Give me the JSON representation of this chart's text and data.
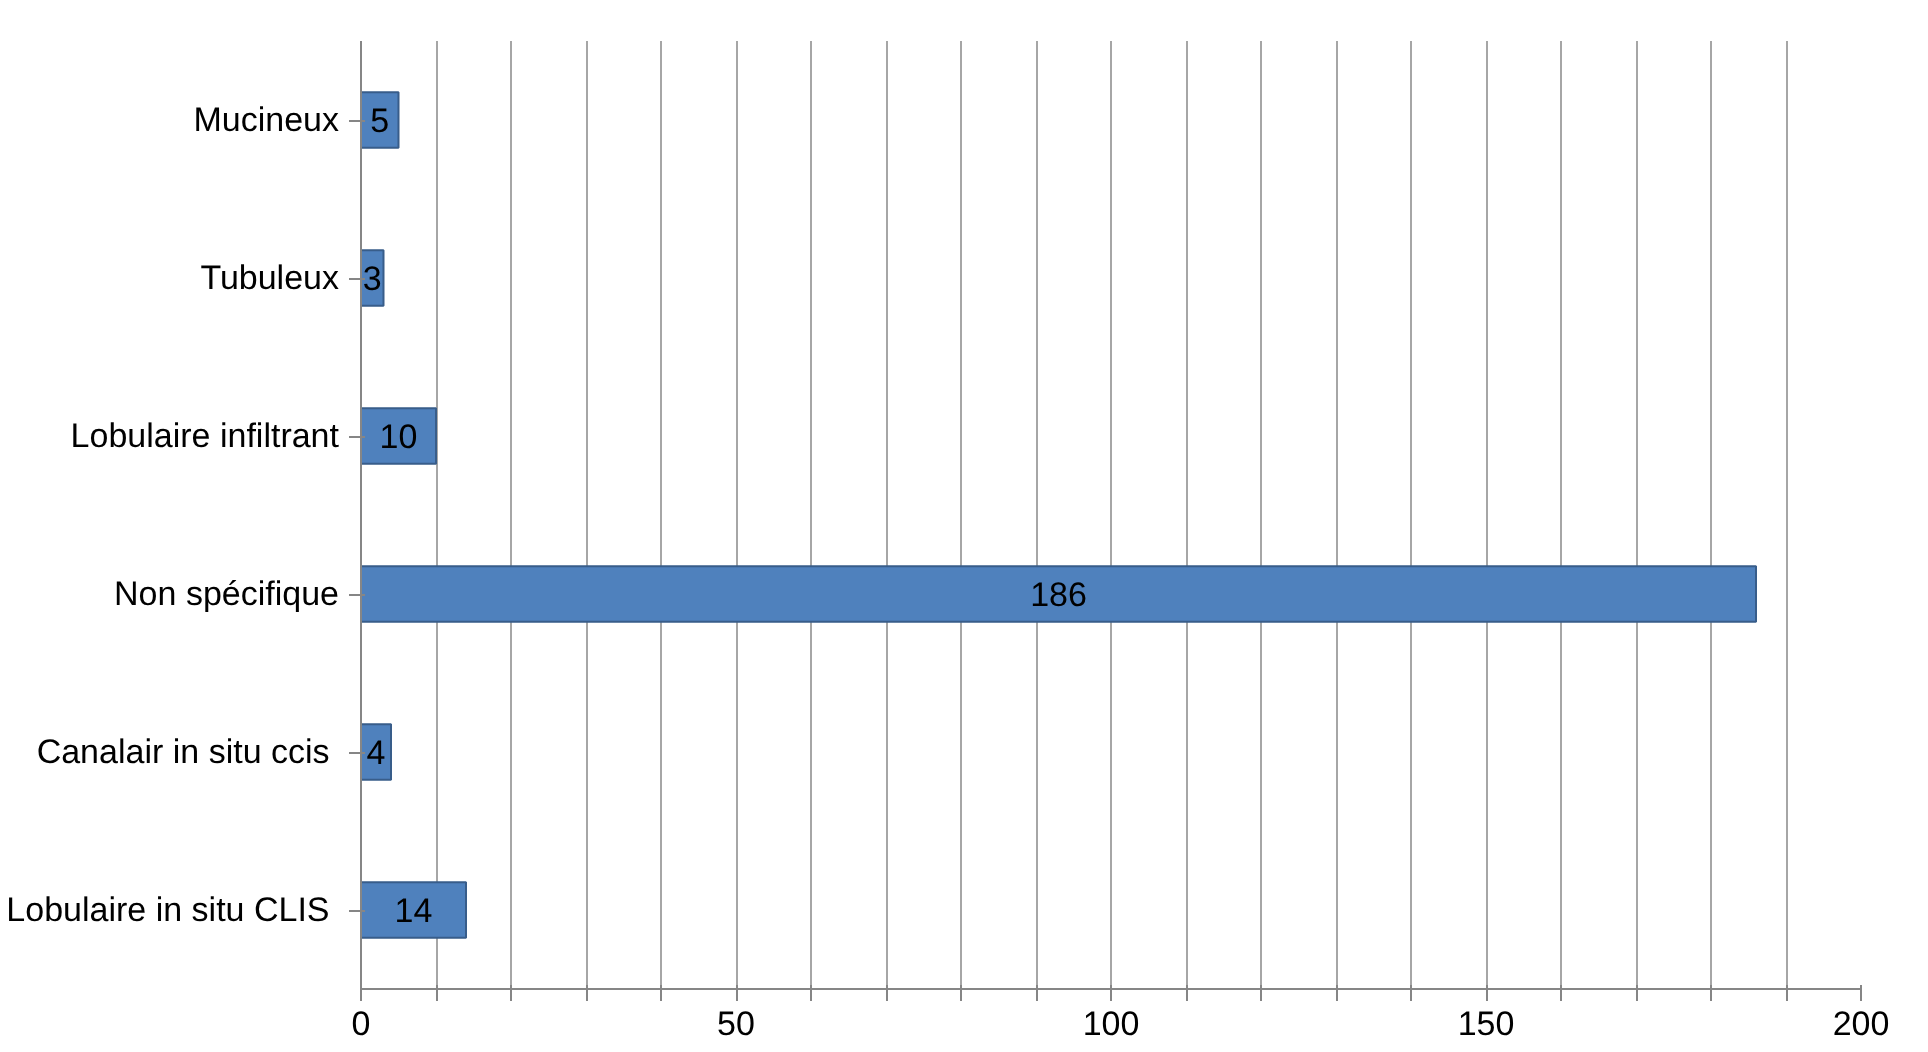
{
  "chart_data": {
    "type": "bar",
    "orientation": "horizontal",
    "categories": [
      "Mucineux",
      "Tubuleux",
      "Lobulaire infiltrant",
      "Non spécifique",
      "Canalair in situ  ccis",
      "Lobulaire in situ  CLIS"
    ],
    "values": [
      5,
      3,
      10,
      186,
      4,
      14
    ],
    "color": "#4f81bd",
    "xlim": [
      0,
      200
    ],
    "xticks": [
      0,
      {
        "value": 10,
        "label": null
      },
      {
        "value": 20,
        "label": null
      },
      {
        "value": 30,
        "label": null
      },
      {
        "value": 40,
        "label": null
      },
      50,
      {
        "value": 60,
        "label": null
      },
      {
        "value": 70,
        "label": null
      },
      {
        "value": 80,
        "label": null
      },
      {
        "value": 90,
        "label": null
      },
      100,
      {
        "value": 110,
        "label": null
      },
      {
        "value": 120,
        "label": null
      },
      {
        "value": 130,
        "label": null
      },
      {
        "value": 140,
        "label": null
      },
      150,
      {
        "value": 160,
        "label": null
      },
      {
        "value": 170,
        "label": null
      },
      {
        "value": 180,
        "label": null
      },
      {
        "value": 190,
        "label": null
      },
      200
    ],
    "grid": "x",
    "data_labels": true
  }
}
